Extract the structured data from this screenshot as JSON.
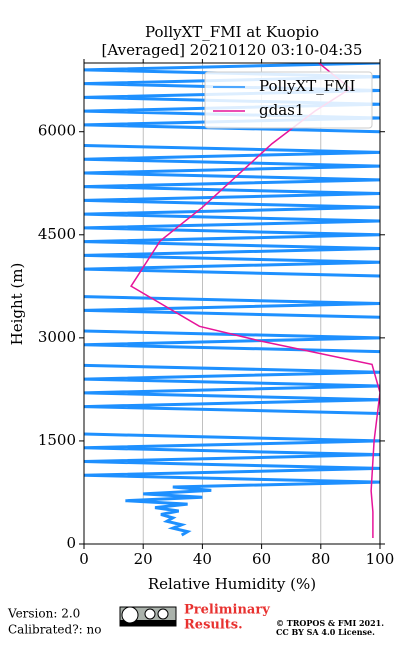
{
  "chart_data": {
    "type": "profile",
    "title": "PollyXT_FMI at Kuopio",
    "subtitle": "[Averaged] 20210120 03:10-04:35",
    "xlabel": "Relative Humidity (%)",
    "ylabel": "Height (m)",
    "xlim": [
      0,
      100
    ],
    "xticks": [
      0,
      20,
      40,
      60,
      80,
      100
    ],
    "ylim": [
      0,
      7000
    ],
    "yticks": [
      0,
      1500,
      3000,
      4500,
      6000
    ],
    "grid": true,
    "legend": "upper right",
    "series": [
      {
        "name": "PollyXT_FMI",
        "color": "#1e90ff",
        "x": [
          33,
          35,
          30,
          33,
          28,
          30,
          26,
          32,
          24,
          35,
          14,
          40,
          20,
          43,
          30,
          100,
          0,
          100,
          0,
          100,
          0,
          100,
          0,
          null,
          null,
          100,
          0,
          100,
          0,
          100,
          0,
          100,
          0,
          null,
          100,
          0,
          100,
          0,
          null,
          100,
          0,
          100,
          0,
          null,
          null,
          100,
          0,
          100,
          0,
          100,
          0,
          100,
          0,
          100,
          0,
          100,
          0,
          100,
          0,
          100,
          0,
          100,
          0,
          100,
          0,
          null,
          100,
          0,
          100,
          0,
          100,
          0,
          100,
          0,
          100,
          0,
          100
        ],
        "y": [
          130,
          180,
          230,
          280,
          330,
          380,
          430,
          480,
          530,
          580,
          630,
          680,
          730,
          780,
          830,
          900,
          1000,
          1100,
          1200,
          1300,
          1400,
          1500,
          1600,
          1700,
          1800,
          1900,
          2000,
          2100,
          2200,
          2300,
          2400,
          2500,
          2600,
          2700,
          2800,
          2900,
          3000,
          3100,
          3200,
          3300,
          3400,
          3500,
          3600,
          3700,
          3800,
          3900,
          4000,
          4100,
          4200,
          4300,
          4400,
          4500,
          4600,
          4700,
          4800,
          4900,
          5000,
          5100,
          5200,
          5300,
          5400,
          5500,
          5600,
          5700,
          5800,
          5900,
          6000,
          6100,
          6200,
          6300,
          6400,
          6500,
          6600,
          6700,
          6800,
          6900,
          7000
        ]
      },
      {
        "name": "gdas1",
        "color": "#e6149a",
        "x": [
          97.6,
          97.6,
          97,
          98,
          100,
          97.3,
          60,
          39,
          15.9,
          25.7,
          40,
          63.5,
          78,
          90,
          78.7
        ],
        "y": [
          88,
          467,
          774,
          1500,
          2204,
          2613,
          2950,
          3168,
          3752,
          4409,
          4900,
          5825,
          6300,
          6628,
          7022
        ]
      }
    ]
  },
  "footer": {
    "version": "Version: 2.0",
    "calibrated": "Calibrated?: no",
    "preliminary": [
      "Preliminary",
      "Results."
    ],
    "copyright": [
      "© TROPOS & FMI 2021.",
      "CC BY SA 4.0 License."
    ]
  }
}
